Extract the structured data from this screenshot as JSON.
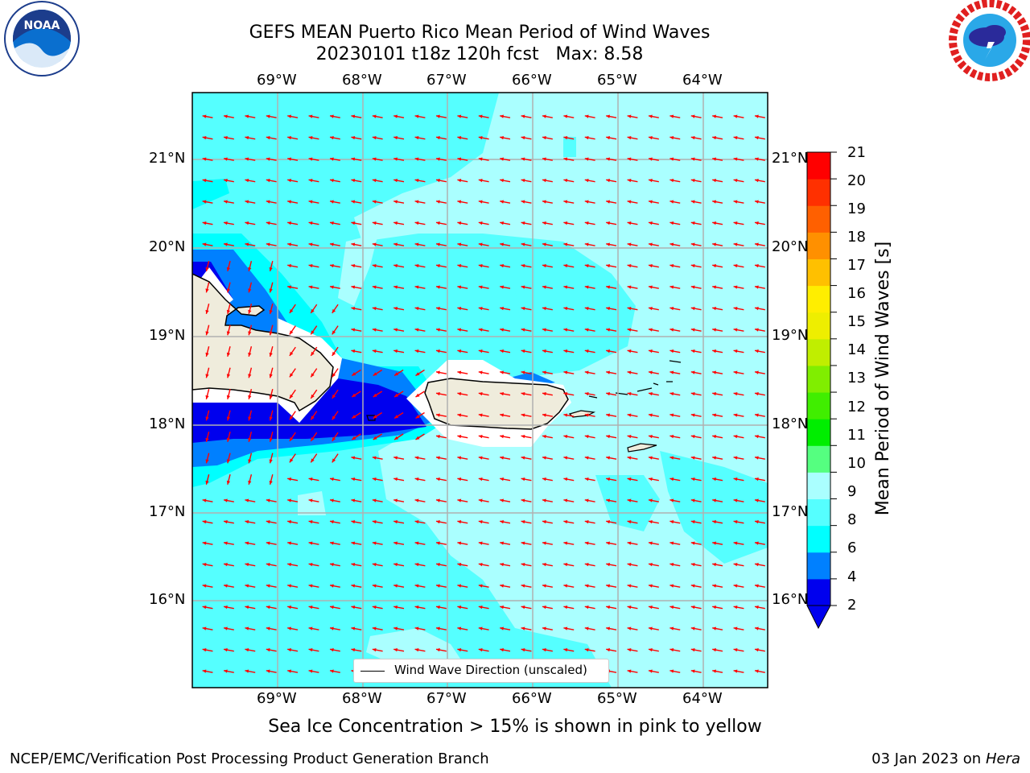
{
  "header": {
    "title_line1": "GEFS MEAN Puerto Rico Mean Period of Wind Waves",
    "title_line2": "20230101 t18z 120h fcst   Max: 8.58"
  },
  "logos": {
    "left": "NOAA",
    "right": "National Weather Service"
  },
  "map": {
    "lon_labels": [
      "69°W",
      "68°W",
      "67°W",
      "66°W",
      "65°W",
      "64°W"
    ],
    "lat_labels": [
      "21°N",
      "20°N",
      "19°N",
      "18°N",
      "17°N",
      "16°N"
    ],
    "legend": "Wind Wave Direction (unscaled)",
    "arrow_color": "#ff0000",
    "land_color": "#efecdc"
  },
  "colorbar": {
    "title": "Mean Period of Wind Waves [s]",
    "ticks": [
      "21",
      "20",
      "19",
      "18",
      "17",
      "16",
      "15",
      "14",
      "13",
      "12",
      "11",
      "10",
      "9",
      "8",
      "6",
      "4",
      "2"
    ],
    "colors": [
      "#0000ee",
      "#0080ff",
      "#00ffff",
      "#55ffff",
      "#aaffff",
      "#55ff80",
      "#00ee00",
      "#40ee00",
      "#80ee00",
      "#c0ee00",
      "#eeee00",
      "#ffee00",
      "#ffc000",
      "#ff9000",
      "#ff6000",
      "#ff3000",
      "#ff0000"
    ]
  },
  "note": "Sea Ice Concentration > 15% is shown in pink to yellow",
  "footer": {
    "left": "NCEP/EMC/Verification Post Processing Product Generation Branch",
    "date": "03 Jan 2023 on ",
    "host": "Hera"
  }
}
